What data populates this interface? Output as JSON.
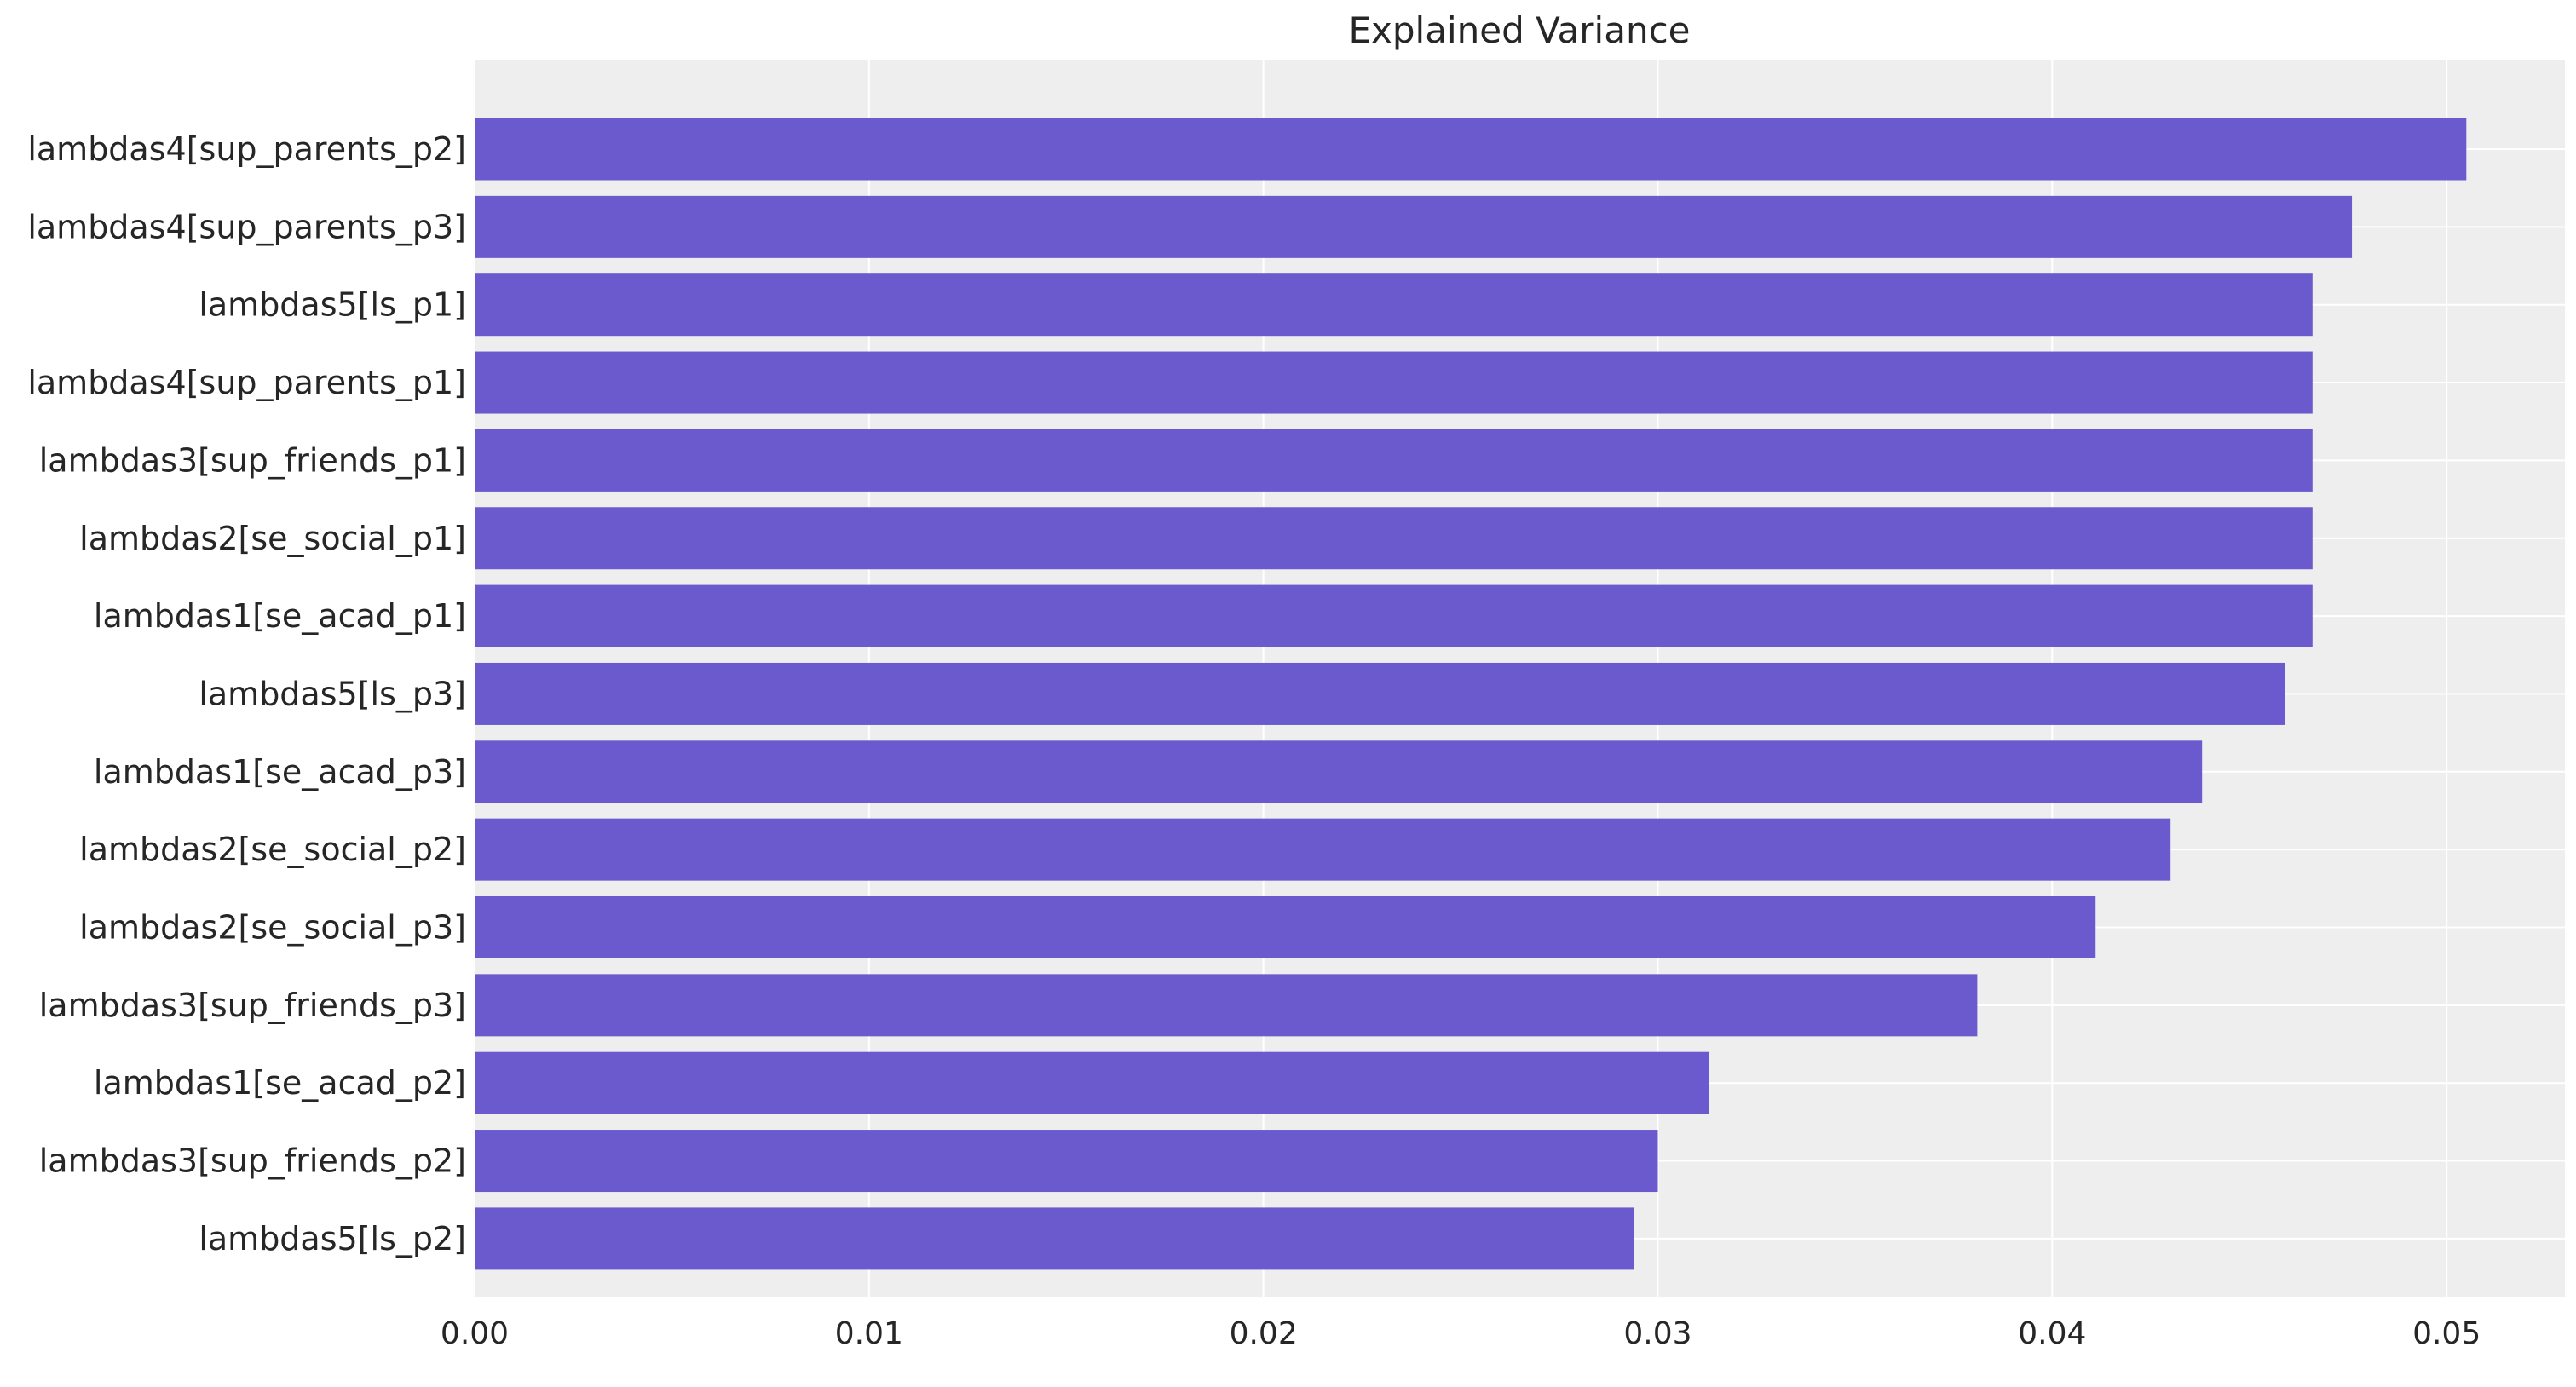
{
  "chart_data": {
    "type": "bar",
    "orientation": "horizontal",
    "title": "Explained Variance",
    "xlabel": "",
    "ylabel": "",
    "xlim": [
      0.0,
      0.053
    ],
    "xticks": [
      "0.00",
      "0.01",
      "0.02",
      "0.03",
      "0.04",
      "0.05"
    ],
    "xtick_values": [
      0.0,
      0.01,
      0.02,
      0.03,
      0.04,
      0.05
    ],
    "grid": true,
    "legend": "none",
    "bar_color": "#6a5acd",
    "background_color": "#eeeeee",
    "grid_color": "#ffffff",
    "categories": [
      "lambdas4[sup_parents_p2]",
      "lambdas4[sup_parents_p3]",
      "lambdas5[ls_p1]",
      "lambdas4[sup_parents_p1]",
      "lambdas3[sup_friends_p1]",
      "lambdas2[se_social_p1]",
      "lambdas1[se_acad_p1]",
      "lambdas5[ls_p3]",
      "lambdas1[se_acad_p3]",
      "lambdas2[se_social_p2]",
      "lambdas2[se_social_p3]",
      "lambdas3[sup_friends_p3]",
      "lambdas1[se_acad_p2]",
      "lambdas3[sup_friends_p2]",
      "lambdas5[ls_p2]"
    ],
    "values": [
      0.0505,
      0.0476,
      0.0466,
      0.0466,
      0.0466,
      0.0466,
      0.0466,
      0.0459,
      0.0438,
      0.043,
      0.0411,
      0.0381,
      0.0313,
      0.03,
      0.0294
    ]
  }
}
